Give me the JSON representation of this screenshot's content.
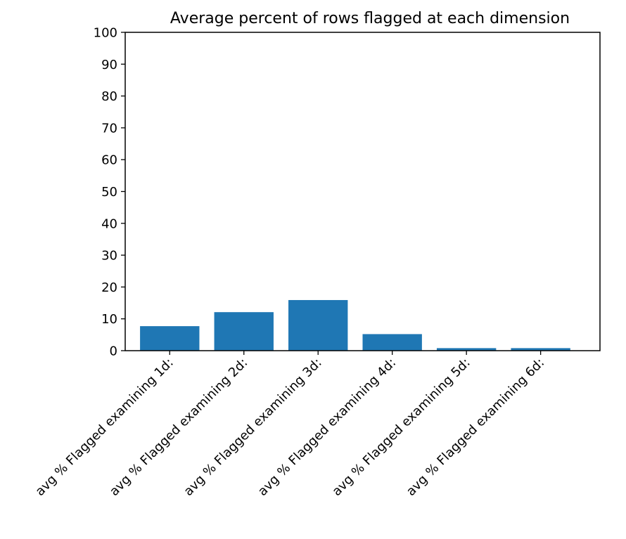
{
  "chart_data": {
    "type": "bar",
    "title": "Average percent of rows flagged at each dimension",
    "xlabel": "",
    "ylabel": "",
    "categories": [
      "avg % Flagged examining 1d:",
      "avg % Flagged examining 2d:",
      "avg % Flagged examining 3d:",
      "avg % Flagged examining 4d:",
      "avg % Flagged examining 5d:",
      "avg % Flagged examining 6d:"
    ],
    "values": [
      7.7,
      12.1,
      15.9,
      5.2,
      0.8,
      0.8
    ],
    "ylim": [
      0,
      100
    ],
    "yticks": [
      "0",
      "10",
      "20",
      "30",
      "40",
      "50",
      "60",
      "70",
      "80",
      "90",
      "100"
    ],
    "grid": false,
    "legend": "none",
    "bar_color": "#1f77b4"
  }
}
